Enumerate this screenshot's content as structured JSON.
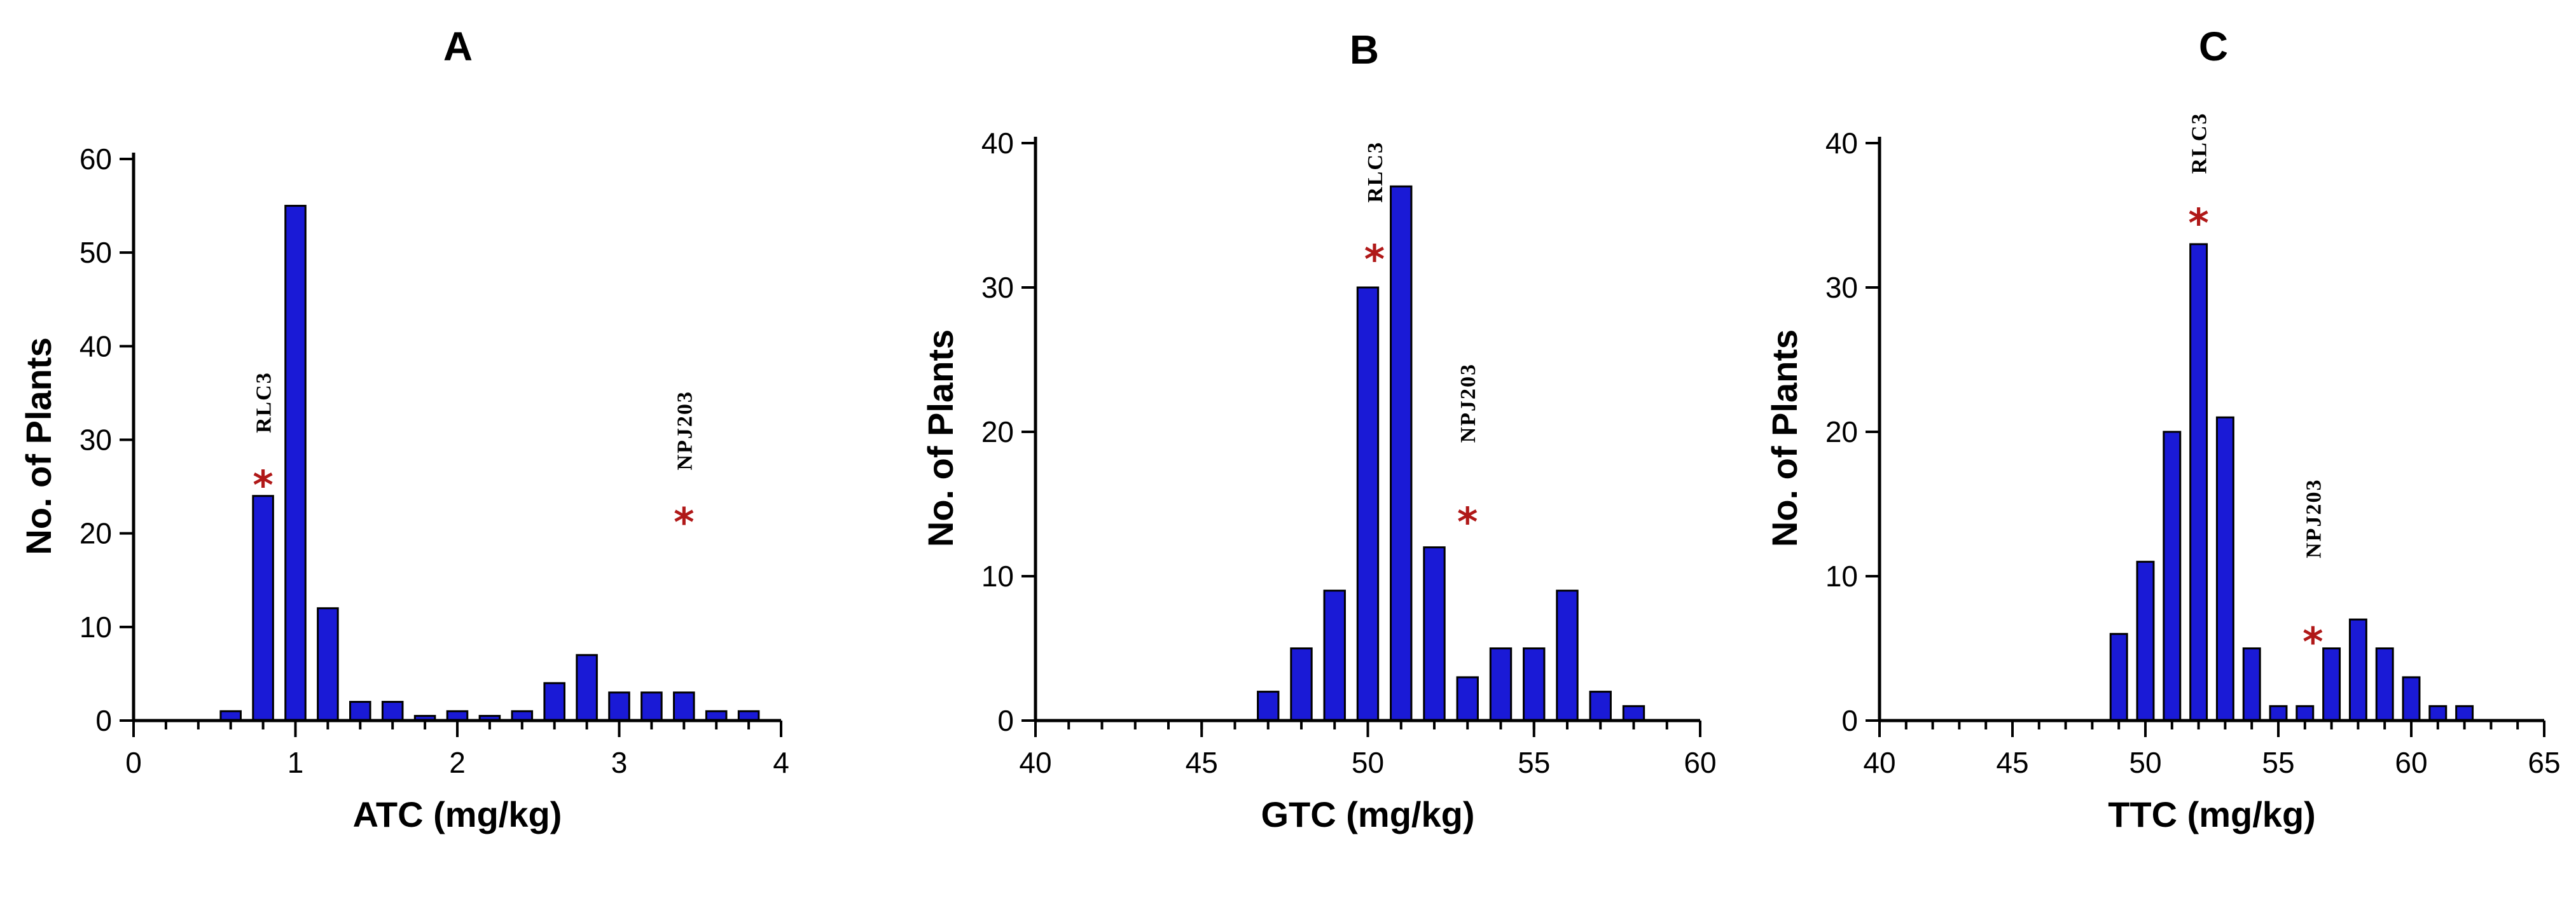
{
  "colors": {
    "bar": "#1a1ad6",
    "star": "#b01818",
    "axis": "#000000"
  },
  "chart_data": [
    {
      "panel": "A",
      "type": "bar",
      "title": "A",
      "xlabel": "ATC (mg/kg)",
      "ylabel": "No. of Plants",
      "xlim": [
        0,
        4
      ],
      "ylim": [
        0,
        60
      ],
      "xticks": [
        0,
        1,
        2,
        3,
        4
      ],
      "yticks": [
        0,
        10,
        20,
        30,
        40,
        50,
        60
      ],
      "minor_xtick_step": 0.2,
      "bin_width": 0.2,
      "x": [
        0.6,
        0.8,
        1.0,
        1.2,
        1.4,
        1.6,
        1.8,
        2.0,
        2.2,
        2.4,
        2.6,
        2.8,
        3.0,
        3.2,
        3.4,
        3.6,
        3.8
      ],
      "values": [
        1,
        24,
        55,
        12,
        2,
        2,
        0.5,
        1,
        0.5,
        1,
        4,
        7,
        3,
        3,
        3,
        1,
        1
      ],
      "annotations": [
        {
          "label": "RLC3",
          "x": 0.8,
          "y_star": 26,
          "y_label": 34
        },
        {
          "label": "NPJ203",
          "x": 3.4,
          "y_star": 22,
          "y_label": 31
        }
      ]
    },
    {
      "panel": "B",
      "type": "bar",
      "title": "B",
      "xlabel": "GTC (mg/kg)",
      "ylabel": "No. of Plants",
      "xlim": [
        40,
        60
      ],
      "ylim": [
        0,
        40
      ],
      "xticks": [
        40,
        45,
        50,
        55,
        60
      ],
      "yticks": [
        0,
        10,
        20,
        30,
        40
      ],
      "minor_xtick_step": 1,
      "bin_width": 1,
      "x": [
        47,
        48,
        49,
        50,
        51,
        52,
        53,
        54,
        55,
        56,
        57,
        58
      ],
      "values": [
        2,
        5,
        9,
        30,
        37,
        12,
        3,
        5,
        5,
        9,
        2,
        1
      ],
      "annotations": [
        {
          "label": "RLC3",
          "x": 50.2,
          "y_star": 32.5,
          "y_label": 38
        },
        {
          "label": "NPJ203",
          "x": 53,
          "y_star": 14.3,
          "y_label": 22
        }
      ]
    },
    {
      "panel": "C",
      "type": "bar",
      "title": "C",
      "xlabel": "TTC (mg/kg)",
      "ylabel": "No. of Plants",
      "xlim": [
        40,
        65
      ],
      "ylim": [
        0,
        40
      ],
      "xticks": [
        40,
        45,
        50,
        55,
        60,
        65
      ],
      "yticks": [
        0,
        10,
        20,
        30,
        40
      ],
      "minor_xtick_step": 1,
      "bin_width": 1,
      "x": [
        49,
        50,
        51,
        52,
        53,
        54,
        55,
        56,
        57,
        58,
        59,
        60,
        61,
        62
      ],
      "values": [
        6,
        11,
        20,
        33,
        21,
        5,
        1,
        1,
        5,
        7,
        5,
        3,
        1,
        1
      ],
      "annotations": [
        {
          "label": "RLC3",
          "x": 52,
          "y_star": 35,
          "y_label": 40
        },
        {
          "label": "NPJ203",
          "x": 56.3,
          "y_star": 6,
          "y_label": 14
        }
      ]
    }
  ]
}
